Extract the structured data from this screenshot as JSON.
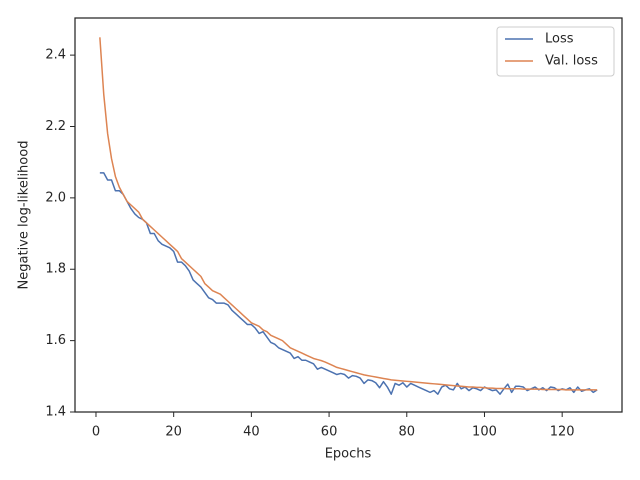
{
  "chart_data": {
    "type": "line",
    "xlabel": "Epochs",
    "ylabel": "Negative log-likelihood",
    "x": [
      1,
      2,
      3,
      4,
      5,
      6,
      7,
      8,
      9,
      10,
      11,
      12,
      13,
      14,
      15,
      16,
      17,
      18,
      19,
      20,
      21,
      22,
      23,
      24,
      25,
      26,
      27,
      28,
      29,
      30,
      31,
      32,
      33,
      34,
      35,
      36,
      37,
      38,
      39,
      40,
      41,
      42,
      43,
      44,
      45,
      46,
      47,
      48,
      49,
      50,
      51,
      52,
      53,
      54,
      55,
      56,
      57,
      58,
      59,
      60,
      61,
      62,
      63,
      64,
      65,
      66,
      67,
      68,
      69,
      70,
      71,
      72,
      73,
      74,
      75,
      76,
      77,
      78,
      79,
      80,
      81,
      82,
      83,
      84,
      85,
      86,
      87,
      88,
      89,
      90,
      91,
      92,
      93,
      94,
      95,
      96,
      97,
      98,
      99,
      100,
      101,
      102,
      103,
      104,
      105,
      106,
      107,
      108,
      109,
      110,
      111,
      112,
      113,
      114,
      115,
      116,
      117,
      118,
      119,
      120,
      121,
      122,
      123,
      124,
      125,
      126,
      127,
      128,
      129
    ],
    "series": [
      {
        "name": "Loss",
        "color": "#4c72b0",
        "values": [
          2.07,
          2.07,
          2.05,
          2.05,
          2.02,
          2.02,
          2.01,
          1.99,
          1.97,
          1.955,
          1.945,
          1.94,
          1.93,
          1.9,
          1.9,
          1.88,
          1.87,
          1.865,
          1.86,
          1.85,
          1.82,
          1.82,
          1.81,
          1.795,
          1.77,
          1.76,
          1.75,
          1.735,
          1.72,
          1.715,
          1.705,
          1.705,
          1.705,
          1.7,
          1.685,
          1.675,
          1.665,
          1.655,
          1.645,
          1.645,
          1.635,
          1.62,
          1.625,
          1.61,
          1.595,
          1.59,
          1.58,
          1.575,
          1.57,
          1.565,
          1.55,
          1.555,
          1.545,
          1.545,
          1.54,
          1.535,
          1.52,
          1.525,
          1.52,
          1.515,
          1.51,
          1.505,
          1.508,
          1.505,
          1.495,
          1.502,
          1.5,
          1.495,
          1.48,
          1.49,
          1.488,
          1.482,
          1.468,
          1.485,
          1.47,
          1.45,
          1.48,
          1.475,
          1.482,
          1.47,
          1.48,
          1.475,
          1.47,
          1.465,
          1.46,
          1.455,
          1.46,
          1.45,
          1.47,
          1.475,
          1.465,
          1.462,
          1.48,
          1.465,
          1.47,
          1.46,
          1.468,
          1.465,
          1.46,
          1.47,
          1.465,
          1.46,
          1.462,
          1.45,
          1.465,
          1.478,
          1.455,
          1.472,
          1.472,
          1.47,
          1.46,
          1.465,
          1.47,
          1.462,
          1.468,
          1.46,
          1.47,
          1.468,
          1.46,
          1.465,
          1.462,
          1.468,
          1.455,
          1.47,
          1.458,
          1.462,
          1.465,
          1.455,
          1.462
        ]
      },
      {
        "name": "Val. loss",
        "color": "#dd8452",
        "values": [
          2.45,
          2.29,
          2.18,
          2.11,
          2.06,
          2.03,
          2.01,
          1.99,
          1.98,
          1.97,
          1.96,
          1.94,
          1.93,
          1.92,
          1.91,
          1.9,
          1.89,
          1.88,
          1.87,
          1.86,
          1.85,
          1.83,
          1.82,
          1.81,
          1.8,
          1.79,
          1.78,
          1.76,
          1.75,
          1.74,
          1.735,
          1.73,
          1.72,
          1.71,
          1.7,
          1.69,
          1.68,
          1.67,
          1.66,
          1.65,
          1.645,
          1.64,
          1.63,
          1.625,
          1.615,
          1.61,
          1.605,
          1.6,
          1.59,
          1.58,
          1.575,
          1.57,
          1.565,
          1.56,
          1.555,
          1.55,
          1.547,
          1.544,
          1.54,
          1.535,
          1.53,
          1.525,
          1.522,
          1.519,
          1.516,
          1.513,
          1.51,
          1.507,
          1.504,
          1.502,
          1.5,
          1.498,
          1.496,
          1.494,
          1.492,
          1.49,
          1.489,
          1.488,
          1.487,
          1.486,
          1.485,
          1.484,
          1.483,
          1.482,
          1.481,
          1.48,
          1.479,
          1.478,
          1.477,
          1.476,
          1.475,
          1.474,
          1.473,
          1.472,
          1.471,
          1.47,
          1.47,
          1.469,
          1.469,
          1.468,
          1.467,
          1.467,
          1.466,
          1.466,
          1.466,
          1.465,
          1.465,
          1.465,
          1.465,
          1.464,
          1.464,
          1.464,
          1.464,
          1.464,
          1.463,
          1.463,
          1.463,
          1.463,
          1.463,
          1.463,
          1.462,
          1.462,
          1.462,
          1.462,
          1.462,
          1.462,
          1.462,
          1.462,
          1.462
        ]
      }
    ],
    "xlim": [
      -5.4,
      135.4
    ],
    "ylim": [
      1.4,
      2.504
    ],
    "xticks": [
      0,
      20,
      40,
      60,
      80,
      100,
      120
    ],
    "yticks": [
      1.4,
      1.6,
      1.8,
      {
        "value": 2,
        "label": "2.0"
      },
      2.2,
      2.4
    ],
    "legend": "upper right",
    "grid": false
  }
}
